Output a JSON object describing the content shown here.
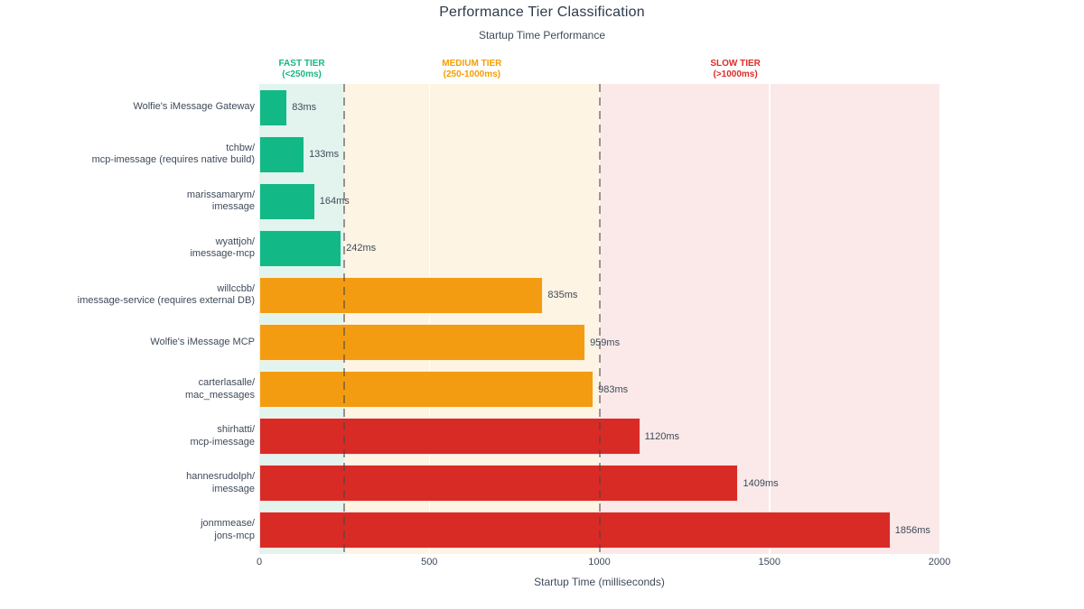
{
  "chart_data": {
    "type": "bar",
    "orientation": "horizontal",
    "title": "Performance Tier Classification",
    "subtitle": "Startup Time Performance",
    "xlabel": "Startup Time (milliseconds)",
    "xlim": [
      0,
      2000
    ],
    "x_ticks": [
      "0",
      "500",
      "1000",
      "1500",
      "2000"
    ],
    "x_tick_values": [
      0,
      500,
      1000,
      1500,
      2000
    ],
    "grid": true,
    "legend": "none",
    "guides_ms": [
      250,
      1000
    ],
    "bars": [
      {
        "label": "Wolfie's iMessage Gateway",
        "value": 83,
        "display": "83ms",
        "tier": "fast"
      },
      {
        "label": "tchbw/\nmcp-imessage (requires native build)",
        "value": 133,
        "display": "133ms",
        "tier": "fast"
      },
      {
        "label": "marissamarym/\nimessage",
        "value": 164,
        "display": "164ms",
        "tier": "fast"
      },
      {
        "label": "wyattjoh/\nimessage-mcp",
        "value": 242,
        "display": "242ms",
        "tier": "fast"
      },
      {
        "label": "willccbb/\nimessage-service (requires external DB)",
        "value": 835,
        "display": "835ms",
        "tier": "medium"
      },
      {
        "label": "Wolfie's iMessage MCP",
        "value": 959,
        "display": "959ms",
        "tier": "medium"
      },
      {
        "label": "carterlasalle/\nmac_messages",
        "value": 983,
        "display": "983ms",
        "tier": "medium"
      },
      {
        "label": "shirhatti/\nmcp-imessage",
        "value": 1120,
        "display": "1120ms",
        "tier": "slow"
      },
      {
        "label": "hannesrudolph/\nimessage",
        "value": 1409,
        "display": "1409ms",
        "tier": "slow"
      },
      {
        "label": "jonmmease/\njons-mcp",
        "value": 1856,
        "display": "1856ms",
        "tier": "slow"
      }
    ],
    "tiers": [
      {
        "id": "fast",
        "label": "FAST TIER",
        "sublabel": "(<250ms)",
        "range": [
          0,
          250
        ],
        "label_at_ms": 125,
        "bar_color": "#12b886",
        "zone_color": "#e3f4ee",
        "text_color": "#17b87e"
      },
      {
        "id": "medium",
        "label": "MEDIUM TIER",
        "sublabel": "(250-1000ms)",
        "range": [
          250,
          1000
        ],
        "label_at_ms": 625,
        "bar_color": "#f39c12",
        "zone_color": "#fdf4e3",
        "text_color": "#f59e00"
      },
      {
        "id": "slow",
        "label": "SLOW TIER",
        "sublabel": "(>1000ms)",
        "range": [
          1000,
          2000
        ],
        "label_at_ms": 1400,
        "bar_color": "#d92b26",
        "zone_color": "#fae9e8",
        "text_color": "#de2c26"
      }
    ],
    "style": {
      "title_color": "#2d3b4d",
      "text_color": "#3e4a5a",
      "guide_color": "rgba(70,70,70,0.55)",
      "gridline_color": "#ffffff",
      "background": "#ffffff"
    }
  }
}
